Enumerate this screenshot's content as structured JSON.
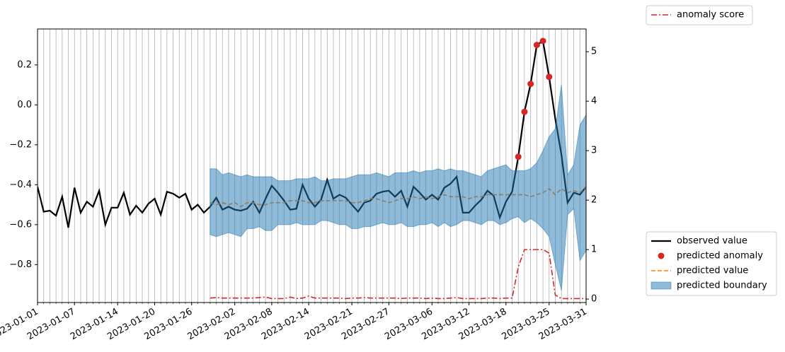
{
  "chart_data": {
    "type": "line",
    "x": [
      "2023-01-01",
      "2023-01-02",
      "2023-01-03",
      "2023-01-04",
      "2023-01-05",
      "2023-01-06",
      "2023-01-07",
      "2023-01-08",
      "2023-01-09",
      "2023-01-10",
      "2023-01-11",
      "2023-01-12",
      "2023-01-13",
      "2023-01-14",
      "2023-01-15",
      "2023-01-16",
      "2023-01-17",
      "2023-01-18",
      "2023-01-19",
      "2023-01-20",
      "2023-01-21",
      "2023-01-22",
      "2023-01-23",
      "2023-01-24",
      "2023-01-25",
      "2023-01-26",
      "2023-01-27",
      "2023-01-28",
      "2023-01-29",
      "2023-01-30",
      "2023-01-31",
      "2023-02-01",
      "2023-02-02",
      "2023-02-03",
      "2023-02-04",
      "2023-02-05",
      "2023-02-06",
      "2023-02-07",
      "2023-02-08",
      "2023-02-09",
      "2023-02-10",
      "2023-02-11",
      "2023-02-12",
      "2023-02-13",
      "2023-02-14",
      "2023-02-15",
      "2023-02-16",
      "2023-02-17",
      "2023-02-18",
      "2023-02-19",
      "2023-02-20",
      "2023-02-21",
      "2023-02-22",
      "2023-02-23",
      "2023-02-24",
      "2023-02-25",
      "2023-02-26",
      "2023-02-27",
      "2023-02-28",
      "2023-03-01",
      "2023-03-02",
      "2023-03-03",
      "2023-03-04",
      "2023-03-05",
      "2023-03-06",
      "2023-03-07",
      "2023-03-08",
      "2023-03-09",
      "2023-03-10",
      "2023-03-11",
      "2023-03-12",
      "2023-03-13",
      "2023-03-14",
      "2023-03-15",
      "2023-03-16",
      "2023-03-17",
      "2023-03-18",
      "2023-03-19",
      "2023-03-20",
      "2023-03-21",
      "2023-03-22",
      "2023-03-23",
      "2023-03-24",
      "2023-03-25",
      "2023-03-26",
      "2023-03-27",
      "2023-03-28",
      "2023-03-29",
      "2023-03-30",
      "2023-03-31"
    ],
    "xlim": [
      "2023-01-01",
      "2023-03-31"
    ],
    "xticks": [
      "2023-01-01",
      "2023-01-07",
      "2023-01-14",
      "2023-01-20",
      "2023-01-26",
      "2023-02-02",
      "2023-02-08",
      "2023-02-14",
      "2023-02-21",
      "2023-02-27",
      "2023-03-06",
      "2023-03-12",
      "2023-03-18",
      "2023-03-25",
      "2023-03-31"
    ],
    "ylim": [
      -0.99,
      0.38
    ],
    "yticks": [
      {
        "value": -0.8,
        "label": "−0.8"
      },
      {
        "value": -0.6,
        "label": "−0.6"
      },
      {
        "value": -0.4,
        "label": "−0.4"
      },
      {
        "value": -0.2,
        "label": "−0.2"
      },
      {
        "value": 0,
        "label": "0.0"
      },
      0.2
    ],
    "y2lim": [
      -0.07,
      5.46
    ],
    "y2ticks": [
      0,
      1,
      2,
      3,
      4,
      5
    ],
    "grid": true,
    "legend": "outside lower right",
    "legend2": "outside upper right",
    "series": [
      {
        "name": "observed value",
        "style": "line",
        "color": "#000000",
        "values": [
          -0.41,
          -0.535,
          -0.53,
          -0.555,
          -0.46,
          -0.615,
          -0.415,
          -0.54,
          -0.485,
          -0.51,
          -0.43,
          -0.6,
          -0.515,
          -0.515,
          -0.44,
          -0.55,
          -0.505,
          -0.54,
          -0.495,
          -0.47,
          -0.55,
          -0.435,
          -0.445,
          -0.465,
          -0.445,
          -0.525,
          -0.5,
          -0.54,
          -0.51,
          -0.465,
          -0.525,
          -0.51,
          -0.525,
          -0.53,
          -0.52,
          -0.485,
          -0.54,
          -0.47,
          -0.405,
          -0.44,
          -0.48,
          -0.525,
          -0.52,
          -0.4,
          -0.47,
          -0.51,
          -0.475,
          -0.375,
          -0.47,
          -0.45,
          -0.465,
          -0.5,
          -0.535,
          -0.49,
          -0.48,
          -0.445,
          -0.435,
          -0.43,
          -0.46,
          -0.43,
          -0.51,
          -0.41,
          -0.44,
          -0.475,
          -0.45,
          -0.475,
          -0.415,
          -0.395,
          -0.36,
          -0.54,
          -0.54,
          -0.505,
          -0.475,
          -0.43,
          -0.455,
          -0.565,
          -0.485,
          -0.435,
          -0.26,
          -0.035,
          0.105,
          0.3,
          0.32,
          0.14,
          -0.07,
          -0.25,
          -0.49,
          -0.44,
          -0.45,
          -0.41
        ]
      },
      {
        "name": "predicted anomaly",
        "style": "marker",
        "color": "#d62728",
        "values": [
          null,
          null,
          null,
          null,
          null,
          null,
          null,
          null,
          null,
          null,
          null,
          null,
          null,
          null,
          null,
          null,
          null,
          null,
          null,
          null,
          null,
          null,
          null,
          null,
          null,
          null,
          null,
          null,
          null,
          null,
          null,
          null,
          null,
          null,
          null,
          null,
          null,
          null,
          null,
          null,
          null,
          null,
          null,
          null,
          null,
          null,
          null,
          null,
          null,
          null,
          null,
          null,
          null,
          null,
          null,
          null,
          null,
          null,
          null,
          null,
          null,
          null,
          null,
          null,
          null,
          null,
          null,
          null,
          null,
          null,
          null,
          null,
          null,
          null,
          null,
          null,
          null,
          null,
          -0.26,
          -0.035,
          0.105,
          0.3,
          0.32,
          0.14,
          null,
          null,
          null,
          null,
          null,
          null
        ]
      },
      {
        "name": "predicted value",
        "style": "dashed",
        "color": "#ff7f0e",
        "values": [
          null,
          null,
          null,
          null,
          null,
          null,
          null,
          null,
          null,
          null,
          null,
          null,
          null,
          null,
          null,
          null,
          null,
          null,
          null,
          null,
          null,
          null,
          null,
          null,
          null,
          null,
          null,
          null,
          -0.49,
          -0.5,
          -0.49,
          -0.5,
          -0.49,
          -0.51,
          -0.49,
          -0.49,
          -0.5,
          -0.5,
          -0.49,
          -0.49,
          -0.49,
          -0.48,
          -0.48,
          -0.48,
          -0.49,
          -0.49,
          -0.48,
          -0.48,
          -0.48,
          -0.48,
          -0.48,
          -0.49,
          -0.49,
          -0.48,
          -0.47,
          -0.47,
          -0.48,
          -0.49,
          -0.48,
          -0.47,
          -0.47,
          -0.46,
          -0.47,
          -0.46,
          -0.47,
          -0.46,
          -0.45,
          -0.46,
          -0.46,
          -0.46,
          -0.47,
          -0.46,
          -0.46,
          -0.45,
          -0.45,
          -0.45,
          -0.45,
          -0.45,
          -0.45,
          -0.45,
          -0.46,
          -0.45,
          -0.44,
          -0.42,
          -0.45,
          -0.42,
          -0.44,
          -0.43,
          -0.44,
          -0.41
        ]
      },
      {
        "name": "predicted boundary",
        "style": "band",
        "color": "#1f77b4",
        "upper": [
          null,
          null,
          null,
          null,
          null,
          null,
          null,
          null,
          null,
          null,
          null,
          null,
          null,
          null,
          null,
          null,
          null,
          null,
          null,
          null,
          null,
          null,
          null,
          null,
          null,
          null,
          null,
          null,
          -0.32,
          -0.32,
          -0.35,
          -0.34,
          -0.35,
          -0.36,
          -0.35,
          -0.36,
          -0.36,
          -0.36,
          -0.36,
          -0.38,
          -0.38,
          -0.38,
          -0.37,
          -0.37,
          -0.37,
          -0.36,
          -0.38,
          -0.38,
          -0.37,
          -0.37,
          -0.37,
          -0.36,
          -0.35,
          -0.35,
          -0.35,
          -0.34,
          -0.35,
          -0.36,
          -0.34,
          -0.34,
          -0.34,
          -0.33,
          -0.34,
          -0.33,
          -0.33,
          -0.32,
          -0.33,
          -0.32,
          -0.33,
          -0.33,
          -0.34,
          -0.35,
          -0.36,
          -0.33,
          -0.32,
          -0.31,
          -0.3,
          -0.33,
          -0.33,
          -0.33,
          -0.32,
          -0.29,
          -0.23,
          -0.16,
          -0.12,
          0.1,
          -0.35,
          -0.3,
          -0.1,
          -0.05
        ],
        "lower": [
          null,
          null,
          null,
          null,
          null,
          null,
          null,
          null,
          null,
          null,
          null,
          null,
          null,
          null,
          null,
          null,
          null,
          null,
          null,
          null,
          null,
          null,
          null,
          null,
          null,
          null,
          null,
          null,
          -0.65,
          -0.66,
          -0.65,
          -0.64,
          -0.65,
          -0.66,
          -0.62,
          -0.62,
          -0.61,
          -0.63,
          -0.63,
          -0.6,
          -0.6,
          -0.6,
          -0.59,
          -0.6,
          -0.6,
          -0.6,
          -0.58,
          -0.58,
          -0.59,
          -0.6,
          -0.6,
          -0.62,
          -0.62,
          -0.61,
          -0.61,
          -0.6,
          -0.59,
          -0.6,
          -0.6,
          -0.59,
          -0.61,
          -0.61,
          -0.6,
          -0.6,
          -0.59,
          -0.61,
          -0.59,
          -0.61,
          -0.6,
          -0.58,
          -0.58,
          -0.59,
          -0.6,
          -0.58,
          -0.58,
          -0.6,
          -0.59,
          -0.57,
          -0.56,
          -0.59,
          -0.57,
          -0.59,
          -0.62,
          -0.66,
          -0.8,
          -0.93,
          -0.55,
          -0.52,
          -0.78,
          -0.73
        ]
      },
      {
        "name": "anomaly score",
        "style": "dashdot",
        "axis": "y2",
        "color": "#d62728",
        "values": [
          null,
          null,
          null,
          null,
          null,
          null,
          null,
          null,
          null,
          null,
          null,
          null,
          null,
          null,
          null,
          null,
          null,
          null,
          null,
          null,
          null,
          null,
          null,
          null,
          null,
          null,
          null,
          null,
          0.02,
          0.03,
          0.02,
          0.02,
          0.02,
          0.02,
          0.02,
          0.02,
          0.03,
          0.04,
          0.01,
          0.01,
          0.01,
          0.04,
          0.01,
          0.02,
          0.06,
          0.02,
          0.02,
          0.02,
          0.02,
          0.02,
          0.01,
          0.02,
          0.02,
          0.03,
          0.02,
          0.02,
          0.02,
          0.02,
          0.02,
          0.01,
          0.02,
          0.02,
          0.02,
          0.01,
          0.02,
          0.01,
          0.01,
          0.02,
          0.03,
          0.01,
          0.01,
          0.01,
          0.01,
          0.02,
          0.02,
          0.01,
          0.02,
          0.02,
          0.65,
          1.0,
          1.0,
          1.0,
          1.0,
          0.93,
          0.08,
          0.01,
          0.01,
          0.01,
          0.01,
          0.01
        ]
      }
    ]
  }
}
